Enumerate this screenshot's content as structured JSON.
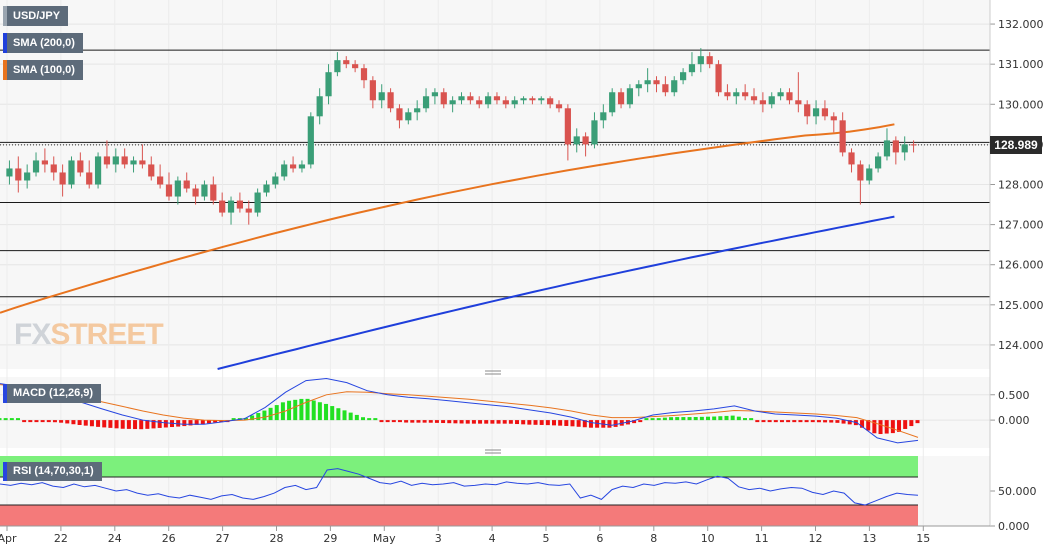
{
  "legend": {
    "symbol": "USD/JPY",
    "sma200": "SMA (200,0)",
    "sma100": "SMA (100,0)",
    "macd": "MACD (12,26,9)",
    "rsi": "RSI (14,70,30,1)"
  },
  "logo": {
    "part1": "FX",
    "part2": "STREET"
  },
  "last_price": "128.989",
  "colors": {
    "up": "#3a9e77",
    "down": "#d9534f",
    "sma200": "#1f3fdb",
    "sma100": "#e8741f",
    "macd_line": "#2746e0",
    "signal_line": "#e8741f",
    "hist_pos": "#22e022",
    "hist_neg": "#ee1111",
    "rsi_line": "#2746e0",
    "rsi_overbought": "#7cf07c",
    "rsi_oversold": "#f47a7a"
  },
  "chart_data": [
    {
      "type": "candlestick",
      "panel": "price",
      "ylim": [
        123.4,
        132.6
      ],
      "y_ticks": [
        "132.000",
        "131.000",
        "130.000",
        "129.000",
        "128.000",
        "127.000",
        "126.000",
        "125.000",
        "124.000"
      ],
      "x_ticks": [
        "Apr",
        "22",
        "24",
        "26",
        "27",
        "28",
        "29",
        "May",
        "3",
        "4",
        "5",
        "6",
        "8",
        "10",
        "11",
        "12",
        "13",
        "15"
      ],
      "horizontal_levels": [
        131.35,
        129.05,
        127.55,
        126.35,
        125.2
      ],
      "candles_ohlc": [
        [
          128.2,
          128.6,
          128.0,
          128.4
        ],
        [
          128.4,
          128.7,
          127.8,
          128.1
        ],
        [
          128.1,
          128.5,
          127.9,
          128.3
        ],
        [
          128.3,
          128.8,
          128.2,
          128.6
        ],
        [
          128.6,
          128.9,
          128.3,
          128.5
        ],
        [
          128.5,
          128.7,
          128.1,
          128.3
        ],
        [
          128.3,
          128.5,
          127.7,
          128.0
        ],
        [
          128.0,
          128.7,
          127.9,
          128.6
        ],
        [
          128.6,
          128.8,
          128.2,
          128.3
        ],
        [
          128.3,
          128.6,
          127.9,
          128.0
        ],
        [
          128.0,
          128.8,
          127.9,
          128.7
        ],
        [
          128.7,
          129.1,
          128.4,
          128.5
        ],
        [
          128.5,
          128.9,
          128.3,
          128.7
        ],
        [
          128.7,
          128.9,
          128.4,
          128.5
        ],
        [
          128.5,
          128.7,
          128.3,
          128.6
        ],
        [
          128.6,
          129.0,
          128.4,
          128.5
        ],
        [
          128.5,
          128.7,
          128.1,
          128.2
        ],
        [
          128.2,
          128.5,
          127.9,
          128.0
        ],
        [
          128.0,
          128.3,
          127.6,
          127.7
        ],
        [
          127.7,
          128.2,
          127.5,
          128.1
        ],
        [
          128.1,
          128.3,
          127.8,
          127.9
        ],
        [
          127.9,
          128.0,
          127.5,
          127.7
        ],
        [
          127.7,
          128.1,
          127.6,
          128.0
        ],
        [
          128.0,
          128.2,
          127.5,
          127.6
        ],
        [
          127.6,
          127.8,
          127.2,
          127.3
        ],
        [
          127.3,
          127.7,
          127.0,
          127.6
        ],
        [
          127.6,
          127.8,
          127.3,
          127.4
        ],
        [
          127.4,
          127.6,
          127.0,
          127.3
        ],
        [
          127.3,
          127.9,
          127.2,
          127.8
        ],
        [
          127.8,
          128.1,
          127.7,
          128.0
        ],
        [
          128.0,
          128.3,
          127.9,
          128.2
        ],
        [
          128.2,
          128.6,
          128.1,
          128.5
        ],
        [
          128.5,
          128.7,
          128.3,
          128.4
        ],
        [
          128.4,
          128.6,
          128.3,
          128.5
        ],
        [
          128.5,
          129.8,
          128.4,
          129.7
        ],
        [
          129.7,
          130.4,
          129.5,
          130.2
        ],
        [
          130.2,
          131.0,
          130.0,
          130.8
        ],
        [
          130.8,
          131.3,
          130.7,
          131.1
        ],
        [
          131.1,
          131.2,
          130.9,
          131.0
        ],
        [
          131.0,
          131.1,
          130.8,
          130.9
        ],
        [
          130.9,
          131.0,
          130.4,
          130.6
        ],
        [
          130.6,
          130.7,
          129.9,
          130.1
        ],
        [
          130.1,
          130.5,
          129.9,
          130.3
        ],
        [
          130.3,
          130.4,
          129.8,
          129.9
        ],
        [
          129.9,
          130.0,
          129.4,
          129.6
        ],
        [
          129.6,
          129.9,
          129.5,
          129.8
        ],
        [
          129.8,
          130.1,
          129.6,
          129.9
        ],
        [
          129.9,
          130.4,
          129.8,
          130.2
        ],
        [
          130.2,
          130.4,
          130.0,
          130.3
        ],
        [
          130.3,
          130.4,
          129.9,
          130.0
        ],
        [
          130.0,
          130.2,
          129.8,
          130.1
        ],
        [
          130.1,
          130.3,
          130.0,
          130.2
        ],
        [
          130.2,
          130.3,
          130.0,
          130.1
        ],
        [
          130.1,
          130.2,
          129.9,
          130.0
        ],
        [
          130.0,
          130.3,
          129.9,
          130.2
        ],
        [
          130.2,
          130.3,
          130.0,
          130.1
        ],
        [
          130.1,
          130.2,
          129.9,
          130.0
        ],
        [
          130.0,
          130.2,
          129.9,
          130.1
        ],
        [
          130.1,
          130.2,
          130.0,
          130.15
        ],
        [
          130.15,
          130.2,
          130.0,
          130.1
        ],
        [
          130.1,
          130.2,
          130.0,
          130.15
        ],
        [
          130.15,
          130.2,
          129.9,
          130.0
        ],
        [
          130.0,
          130.1,
          129.8,
          129.9
        ],
        [
          129.9,
          130.0,
          128.6,
          129.0
        ],
        [
          129.0,
          129.4,
          128.8,
          129.2
        ],
        [
          129.2,
          129.3,
          128.7,
          129.0
        ],
        [
          129.0,
          129.8,
          128.9,
          129.6
        ],
        [
          129.6,
          130.0,
          129.4,
          129.8
        ],
        [
          129.8,
          130.4,
          129.7,
          130.3
        ],
        [
          130.3,
          130.4,
          129.9,
          130.0
        ],
        [
          130.0,
          130.5,
          129.9,
          130.4
        ],
        [
          130.4,
          130.6,
          130.2,
          130.5
        ],
        [
          130.5,
          130.9,
          130.3,
          130.6
        ],
        [
          130.6,
          130.7,
          130.3,
          130.5
        ],
        [
          130.5,
          130.7,
          130.2,
          130.3
        ],
        [
          130.3,
          130.7,
          130.2,
          130.6
        ],
        [
          130.6,
          130.9,
          130.5,
          130.8
        ],
        [
          130.8,
          131.3,
          130.7,
          131.0
        ],
        [
          131.0,
          131.4,
          130.8,
          131.2
        ],
        [
          131.2,
          131.3,
          130.9,
          131.0
        ],
        [
          131.0,
          131.1,
          130.2,
          130.3
        ],
        [
          130.3,
          130.5,
          130.1,
          130.2
        ],
        [
          130.2,
          130.4,
          130.0,
          130.3
        ],
        [
          130.3,
          130.5,
          130.1,
          130.2
        ],
        [
          130.2,
          130.4,
          130.0,
          130.1
        ],
        [
          130.1,
          130.3,
          129.8,
          130.0
        ],
        [
          130.0,
          130.3,
          129.9,
          130.2
        ],
        [
          130.2,
          130.4,
          130.1,
          130.3
        ],
        [
          130.3,
          130.4,
          130.0,
          130.1
        ],
        [
          130.1,
          130.8,
          129.8,
          130.0
        ],
        [
          130.0,
          130.1,
          129.5,
          129.7
        ],
        [
          129.7,
          130.1,
          129.5,
          129.9
        ],
        [
          129.9,
          130.1,
          129.6,
          129.7
        ],
        [
          129.7,
          129.8,
          129.3,
          129.6
        ],
        [
          129.6,
          129.8,
          128.7,
          128.8
        ],
        [
          128.8,
          128.9,
          128.3,
          128.5
        ],
        [
          128.5,
          128.6,
          127.5,
          128.1
        ],
        [
          128.1,
          128.5,
          128.0,
          128.4
        ],
        [
          128.4,
          128.8,
          128.3,
          128.7
        ],
        [
          128.7,
          129.4,
          128.6,
          129.1
        ],
        [
          129.1,
          129.2,
          128.5,
          128.8
        ],
        [
          128.8,
          129.2,
          128.6,
          129.0
        ],
        [
          129.0,
          129.1,
          128.8,
          128.989
        ]
      ],
      "sma100_endpoints": [
        {
          "x": "Apr",
          "y": 124.8
        },
        {
          "x": "13",
          "y": 129.5
        }
      ],
      "sma200_endpoints": [
        {
          "x": "27",
          "y": 123.4
        },
        {
          "x": "13",
          "y": 127.2
        }
      ]
    },
    {
      "type": "macd",
      "panel": "macd",
      "ylim": [
        -0.55,
        0.85
      ],
      "y_ticks": [
        "0.500",
        "0.000"
      ],
      "macd_line": [
        0.72,
        0.66,
        0.58,
        0.48,
        0.35,
        0.22,
        0.1,
        0.0,
        -0.05,
        -0.08,
        -0.08,
        -0.03,
        0.03,
        0.25,
        0.55,
        0.78,
        0.82,
        0.74,
        0.58,
        0.5,
        0.45,
        0.42,
        0.38,
        0.34,
        0.3,
        0.26,
        0.2,
        0.14,
        0.06,
        -0.05,
        -0.1,
        -0.02,
        0.1,
        0.15,
        0.18,
        0.22,
        0.28,
        0.18,
        0.12,
        0.1,
        0.08,
        0.04,
        -0.05,
        -0.35,
        -0.45,
        -0.4
      ],
      "signal_line": [
        0.7,
        0.66,
        0.6,
        0.53,
        0.45,
        0.36,
        0.27,
        0.18,
        0.1,
        0.04,
        0.0,
        -0.01,
        0.0,
        0.06,
        0.18,
        0.35,
        0.5,
        0.56,
        0.55,
        0.52,
        0.5,
        0.47,
        0.44,
        0.41,
        0.37,
        0.33,
        0.29,
        0.24,
        0.18,
        0.1,
        0.05,
        0.05,
        0.07,
        0.09,
        0.12,
        0.15,
        0.19,
        0.18,
        0.16,
        0.14,
        0.12,
        0.09,
        0.05,
        -0.07,
        -0.2,
        -0.34
      ]
    },
    {
      "type": "rsi",
      "panel": "rsi",
      "ylim": [
        0,
        100
      ],
      "y_ticks": [
        "50.000",
        "0.000"
      ],
      "rsi_line": [
        60,
        58,
        61,
        59,
        62,
        57,
        55,
        60,
        56,
        58,
        54,
        50,
        52,
        47,
        44,
        46,
        42,
        40,
        44,
        41,
        38,
        43,
        45,
        40,
        38,
        42,
        47,
        55,
        58,
        52,
        55,
        80,
        82,
        78,
        74,
        68,
        62,
        60,
        64,
        58,
        61,
        59,
        60,
        62,
        57,
        58,
        60,
        59,
        63,
        61,
        60,
        62,
        59,
        58,
        60,
        40,
        44,
        38,
        52,
        57,
        55,
        60,
        58,
        62,
        61,
        63,
        60,
        66,
        71,
        68,
        56,
        52,
        54,
        50,
        53,
        55,
        54,
        48,
        45,
        50,
        47,
        33,
        30,
        36,
        42,
        47,
        45,
        44
      ]
    }
  ]
}
